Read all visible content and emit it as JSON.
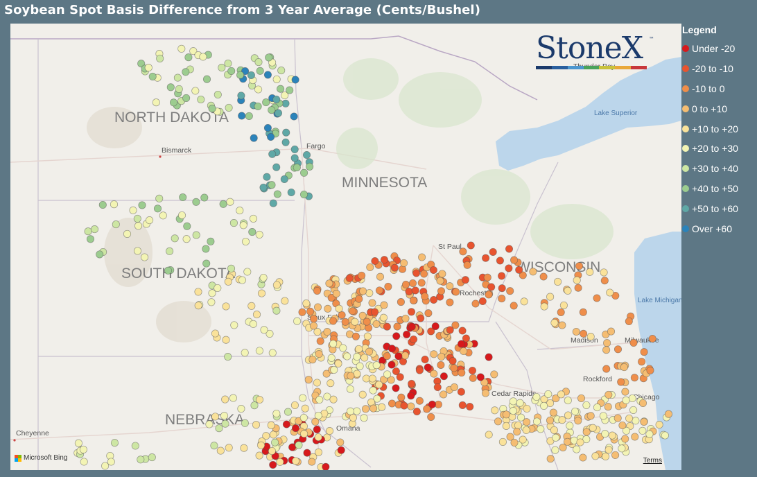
{
  "title": "Soybean Spot Basis Difference from 3 Year Average (Cents/Bushel)",
  "legend": {
    "title": "Legend",
    "items": [
      {
        "label": "Under -20",
        "color": "#d7191c"
      },
      {
        "label": "-20 to -10",
        "color": "#e8542f"
      },
      {
        "label": "-10 to 0",
        "color": "#ef8e4a"
      },
      {
        "label": "0 to +10",
        "color": "#f5bd72"
      },
      {
        "label": "+10 to +20",
        "color": "#fae29a"
      },
      {
        "label": "+20 to +30",
        "color": "#f3f4b4"
      },
      {
        "label": "+30 to +40",
        "color": "#cde6a3"
      },
      {
        "label": "+40 to +50",
        "color": "#9ccc8f"
      },
      {
        "label": "+50 to +60",
        "color": "#5fa8a6"
      },
      {
        "label": "Over +60",
        "color": "#2b83ba"
      }
    ]
  },
  "map": {
    "state_labels": [
      "NORTH DAKOTA",
      "MINNESOTA",
      "SOUTH DAKOTA",
      "WISCONSIN",
      "NEBRASKA"
    ],
    "city_labels": [
      "Bismarck",
      "Fargo",
      "St Paul",
      "Rochester",
      "Sioux Falls",
      "Madison",
      "Milwaukee",
      "Rockford",
      "Cedar Rapids",
      "Chicago",
      "Omaha",
      "Cheyenne",
      "Thunder Bay"
    ],
    "lake_labels": [
      "Lake Superior",
      "Lake Michigan"
    ],
    "attribution": "Microsoft Bing",
    "terms_link": "Terms"
  },
  "logo": {
    "text": "StoneX",
    "tm": "™",
    "bar_colors": [
      "#1b3a6b",
      "#2a5f9e",
      "#4d97cf",
      "#4aa35a",
      "#c9c23b",
      "#e9a83a",
      "#c8373a"
    ]
  }
}
